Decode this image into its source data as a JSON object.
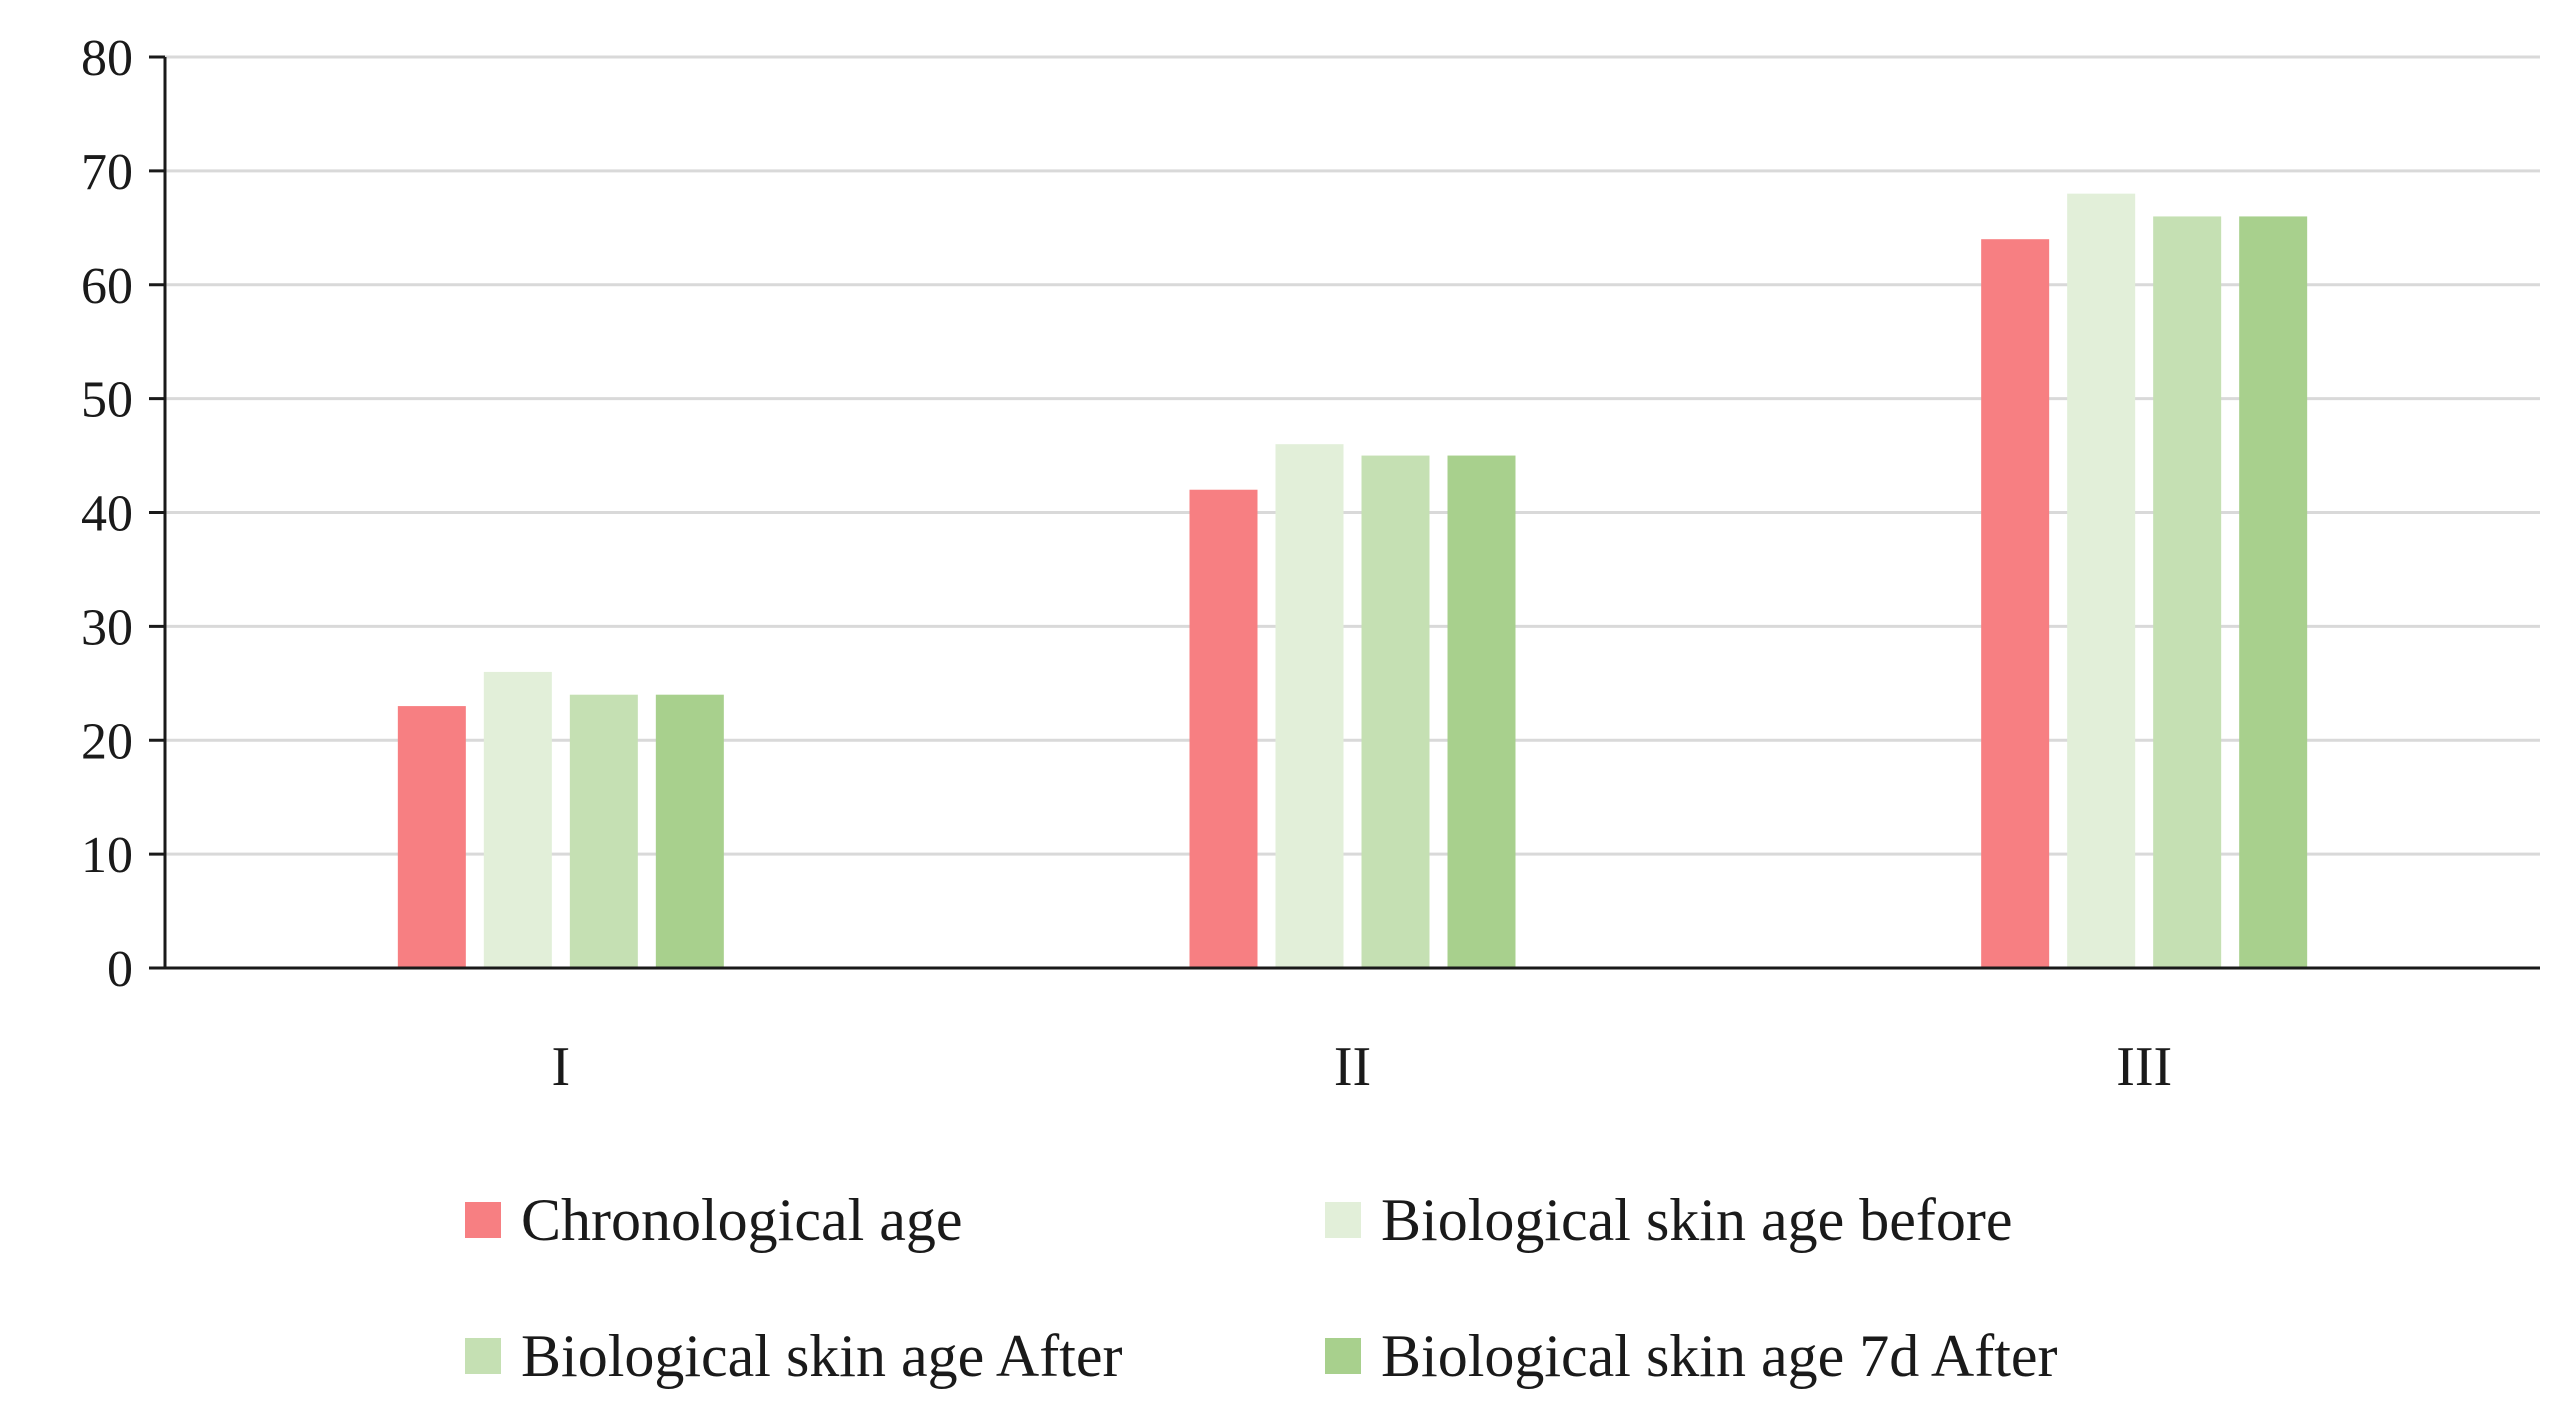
{
  "chart_data": {
    "type": "bar",
    "title": "",
    "xlabel": "",
    "ylabel": "",
    "categories": [
      "I",
      "II",
      "III"
    ],
    "ylim": [
      0,
      80
    ],
    "yticks": [
      "0",
      "10",
      "20",
      "30",
      "40",
      "50",
      "60",
      "70",
      "80"
    ],
    "grid": true,
    "legend_position": "bottom",
    "series": [
      {
        "name": "Chronological age",
        "color": "#f77f82",
        "values": [
          23,
          42,
          64
        ]
      },
      {
        "name": "Biological skin age before",
        "color": "#e2efd9",
        "values": [
          26,
          46,
          68
        ]
      },
      {
        "name": "Biological skin age After",
        "color": "#c5e0b3",
        "values": [
          24,
          45,
          66
        ]
      },
      {
        "name": "Biological skin age 7d After",
        "color": "#a8d08d",
        "values": [
          24,
          45,
          66
        ]
      }
    ]
  }
}
